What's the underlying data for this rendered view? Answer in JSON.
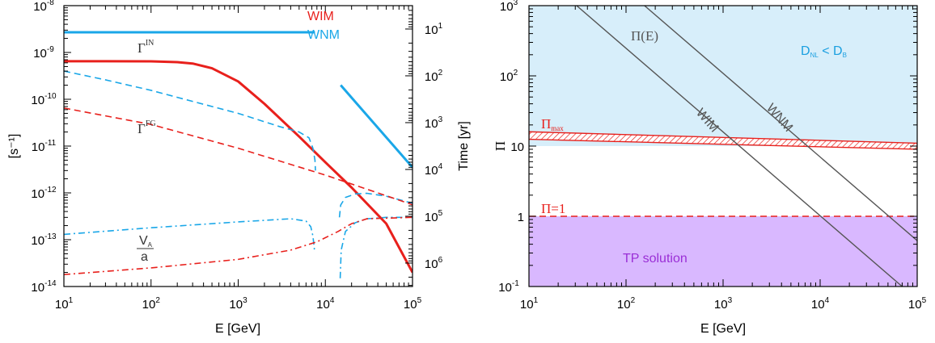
{
  "colors": {
    "wim": "#e8201c",
    "wnm": "#1aa7e8",
    "gray": "#555555",
    "blue_region": "#d7eefa",
    "purple_region": "#d9b8ff",
    "tp_text": "#9a2fd6",
    "dnl_text": "#1a9fe0"
  },
  "chart_data": [
    {
      "type": "line",
      "xlabel": "E [GeV]",
      "ylabel": "[s⁻¹]",
      "y2label": "Time [yr]",
      "xscale": "log",
      "yscale": "log",
      "xlim": [
        10,
        100000
      ],
      "ylim": [
        1e-14,
        1e-08
      ],
      "x_ticks": [
        {
          "v": 10,
          "base": "10",
          "exp": "1"
        },
        {
          "v": 100,
          "base": "10",
          "exp": "2"
        },
        {
          "v": 1000,
          "base": "10",
          "exp": "3"
        },
        {
          "v": 10000,
          "base": "10",
          "exp": "4"
        },
        {
          "v": 100000,
          "base": "10",
          "exp": "5"
        }
      ],
      "y_ticks": [
        {
          "v": 1e-14,
          "base": "10",
          "exp": "-14"
        },
        {
          "v": 1e-13,
          "base": "10",
          "exp": "-13"
        },
        {
          "v": 1e-12,
          "base": "10",
          "exp": "-12"
        },
        {
          "v": 1e-11,
          "base": "10",
          "exp": "-11"
        },
        {
          "v": 1e-10,
          "base": "10",
          "exp": "-10"
        },
        {
          "v": 1e-09,
          "base": "10",
          "exp": "-9"
        },
        {
          "v": 1e-08,
          "base": "10",
          "exp": "-8"
        }
      ],
      "y2_ticks": [
        {
          "yr": 10,
          "base": "10",
          "exp": "1"
        },
        {
          "yr": 100,
          "base": "10",
          "exp": "2"
        },
        {
          "yr": 1000,
          "base": "10",
          "exp": "3"
        },
        {
          "yr": 10000,
          "base": "10",
          "exp": "4"
        },
        {
          "yr": 100000,
          "base": "10",
          "exp": "5"
        },
        {
          "yr": 1000000,
          "base": "10",
          "exp": "6"
        }
      ],
      "legend": [
        {
          "label": "WIM",
          "color": "#e8201c"
        },
        {
          "label": "WNM",
          "color": "#1aa7e8"
        }
      ],
      "annotations": {
        "gamma_in": {
          "main": "Γ",
          "sup": "IN"
        },
        "gamma_fg": {
          "main": "Γ",
          "sup": "FG"
        },
        "va_a": {
          "num": "V",
          "num_sub": "A",
          "den": "a"
        }
      },
      "series": [
        {
          "id": "wnm-gamma-in",
          "color": "#1aa7e8",
          "style": "solid",
          "width": 3,
          "points": [
            [
              10,
              2.7e-09
            ],
            [
              7600,
              2.7e-09
            ]
          ]
        },
        {
          "id": "wnm-gamma-in-high",
          "color": "#1aa7e8",
          "style": "solid",
          "width": 3,
          "points": [
            [
              15000,
              2e-10
            ],
            [
              100000,
              3.5e-12
            ]
          ]
        },
        {
          "id": "wim-gamma-in",
          "color": "#e8201c",
          "style": "solid",
          "width": 3,
          "points": [
            [
              10,
              6.5e-10
            ],
            [
              30,
              6.5e-10
            ],
            [
              100,
              6.45e-10
            ],
            [
              200,
              6.2e-10
            ],
            [
              300,
              5.8e-10
            ],
            [
              500,
              4.6e-10
            ],
            [
              1000,
              2.4e-10
            ],
            [
              2000,
              8e-11
            ],
            [
              5000,
              1.6e-11
            ],
            [
              10000,
              4.5e-12
            ],
            [
              20000,
              1.3e-12
            ],
            [
              50000,
              2.2e-13
            ],
            [
              100000,
              2e-14
            ]
          ]
        },
        {
          "id": "wnm-gamma-fg",
          "color": "#1aa7e8",
          "style": "dash",
          "width": 1.6,
          "points": [
            [
              10,
              4e-10
            ],
            [
              30,
              2.6e-10
            ],
            [
              100,
              1.55e-10
            ],
            [
              300,
              9e-11
            ],
            [
              1000,
              5e-11
            ],
            [
              3000,
              2.6e-11
            ],
            [
              5000,
              2e-11
            ],
            [
              6500,
              1.5e-11
            ],
            [
              7200,
              9e-12
            ],
            [
              7600,
              5e-12
            ],
            [
              7700,
              3e-12
            ]
          ]
        },
        {
          "id": "wnm-gamma-fg-high",
          "color": "#1aa7e8",
          "style": "dash",
          "width": 1.6,
          "points": [
            [
              14500,
              3e-13
            ],
            [
              15000,
              5.5e-13
            ],
            [
              17000,
              8e-13
            ],
            [
              22000,
              9.5e-13
            ],
            [
              30000,
              9.8e-13
            ],
            [
              50000,
              8.5e-13
            ],
            [
              100000,
              6e-13
            ]
          ]
        },
        {
          "id": "wim-gamma-fg",
          "color": "#e8201c",
          "style": "dash",
          "width": 1.6,
          "points": [
            [
              10,
              6.5e-11
            ],
            [
              100,
              2.9e-11
            ],
            [
              1000,
              9e-12
            ],
            [
              10000,
              2.4e-12
            ],
            [
              100000,
              5.6e-13
            ]
          ]
        },
        {
          "id": "wnm-va-a",
          "color": "#1aa7e8",
          "style": "dashdot",
          "width": 1.6,
          "points": [
            [
              10,
              1.3e-13
            ],
            [
              100,
              1.8e-13
            ],
            [
              1000,
              2.4e-13
            ],
            [
              4000,
              2.8e-13
            ],
            [
              6000,
              2.5e-13
            ],
            [
              6800,
              1.9e-13
            ],
            [
              7200,
              1.2e-13
            ],
            [
              7500,
              6e-14
            ]
          ]
        },
        {
          "id": "wnm-va-a-high",
          "color": "#1aa7e8",
          "style": "dashdot",
          "width": 1.6,
          "points": [
            [
              14800,
              1.5e-14
            ],
            [
              15200,
              6e-14
            ],
            [
              17000,
              1.5e-13
            ],
            [
              22000,
              2.3e-13
            ],
            [
              30000,
              2.8e-13
            ],
            [
              50000,
              3e-13
            ],
            [
              100000,
              3e-13
            ]
          ]
        },
        {
          "id": "wim-va-a",
          "color": "#e8201c",
          "style": "dashdot",
          "width": 1.6,
          "points": [
            [
              10,
              1.8e-14
            ],
            [
              100,
              2.5e-14
            ],
            [
              1000,
              3.8e-14
            ],
            [
              4000,
              6e-14
            ],
            [
              8000,
              9e-14
            ],
            [
              14000,
              1.5e-13
            ],
            [
              20000,
              2.2e-13
            ],
            [
              30000,
              2.8e-13
            ],
            [
              100000,
              3e-13
            ]
          ]
        }
      ]
    },
    {
      "type": "line",
      "xlabel": "E [GeV]",
      "ylabel": "Π",
      "xscale": "log",
      "yscale": "log",
      "xlim": [
        10,
        100000
      ],
      "ylim": [
        0.1,
        1000
      ],
      "x_ticks": [
        {
          "v": 10,
          "base": "10",
          "exp": "1"
        },
        {
          "v": 100,
          "base": "10",
          "exp": "2"
        },
        {
          "v": 1000,
          "base": "10",
          "exp": "3"
        },
        {
          "v": 10000,
          "base": "10",
          "exp": "4"
        },
        {
          "v": 100000,
          "base": "10",
          "exp": "5"
        }
      ],
      "y_ticks": [
        {
          "v": 0.1,
          "base": "10",
          "exp": "-1"
        },
        {
          "v": 1,
          "label": "1"
        },
        {
          "v": 10,
          "label": "10"
        },
        {
          "v": 100,
          "base": "10",
          "exp": "2"
        },
        {
          "v": 1000,
          "base": "10",
          "exp": "3"
        }
      ],
      "regions": [
        {
          "id": "dnl-region",
          "label_main": "D",
          "label_sub1": "NL",
          "label_mid": " < D",
          "label_sub2": "B",
          "color": "#d7eefa",
          "y_from": 10,
          "y_to": 1000
        },
        {
          "id": "tp-region",
          "label": "TP solution",
          "color": "#d9b8ff",
          "y_from": 0.1,
          "y_to": 1
        }
      ],
      "pi_max_band": {
        "label_main": "Π",
        "label_sub": "max",
        "x": [
          10,
          100000
        ],
        "y_low": [
          12.5,
          9.0
        ],
        "y_high": [
          16.0,
          11.0
        ]
      },
      "pi_one": {
        "label": "Π=1",
        "y": 1
      },
      "pi_e_lines": [
        {
          "label": "WIM",
          "points": [
            [
              31,
              1000
            ],
            [
              70000,
              0.1
            ]
          ]
        },
        {
          "label": "WNM",
          "points": [
            [
              155,
              1000
            ],
            [
              100000,
              0.45
            ]
          ]
        }
      ],
      "pi_e_label": "Π(E)"
    }
  ]
}
